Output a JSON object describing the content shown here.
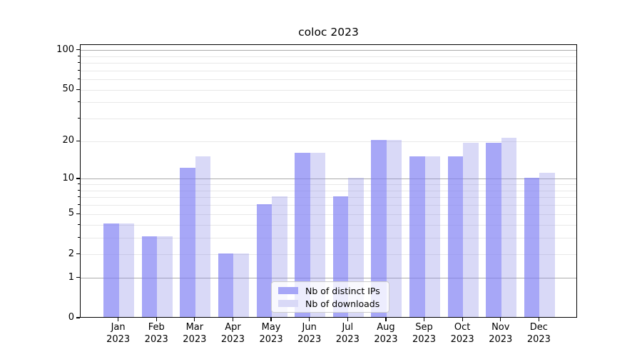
{
  "figure": {
    "title": "coloc 2023"
  },
  "legend": {
    "items": [
      {
        "label": "Nb of distinct IPs",
        "swatch_color": "#a6a6f7"
      },
      {
        "label": "Nb of downloads",
        "swatch_color": "#d9d9f7"
      }
    ]
  },
  "colors": {
    "distinct_ips_bar": "rgba(125,125,243,0.68)",
    "downloads_bar": "rgba(137,137,231,0.32)",
    "distinct_ips_solid": "#a6a6f7",
    "downloads_solid": "#d9d9f7",
    "grid_major": "#ababab",
    "grid_minor": "#e8e8e8",
    "spine": "#000000"
  },
  "chart_data": {
    "type": "bar",
    "title": "coloc 2023",
    "categories": [
      "Jan 2023",
      "Feb 2023",
      "Mar 2023",
      "Apr 2023",
      "May 2023",
      "Jun 2023",
      "Jul 2023",
      "Aug 2023",
      "Sep 2023",
      "Oct 2023",
      "Nov 2023",
      "Dec 2023"
    ],
    "series": [
      {
        "name": "Nb of distinct IPs",
        "values": [
          4,
          3,
          12,
          2,
          6,
          16,
          7,
          20,
          15,
          15,
          19,
          10
        ]
      },
      {
        "name": "Nb of downloads",
        "values": [
          4,
          3,
          15,
          2,
          7,
          16,
          10,
          20,
          15,
          19,
          21,
          11
        ]
      }
    ],
    "xlabel": "",
    "ylabel": "",
    "yscale": "log1p",
    "yticks": [
      0,
      1,
      2,
      5,
      10,
      20,
      50,
      100
    ],
    "yticks_minor": [
      3,
      4,
      6,
      7,
      8,
      9,
      30,
      40,
      60,
      70,
      80,
      90
    ],
    "grid_major_at": [
      1,
      10,
      100
    ],
    "ylim": [
      0,
      110
    ],
    "grid": true,
    "legend_position": "lower-center"
  }
}
